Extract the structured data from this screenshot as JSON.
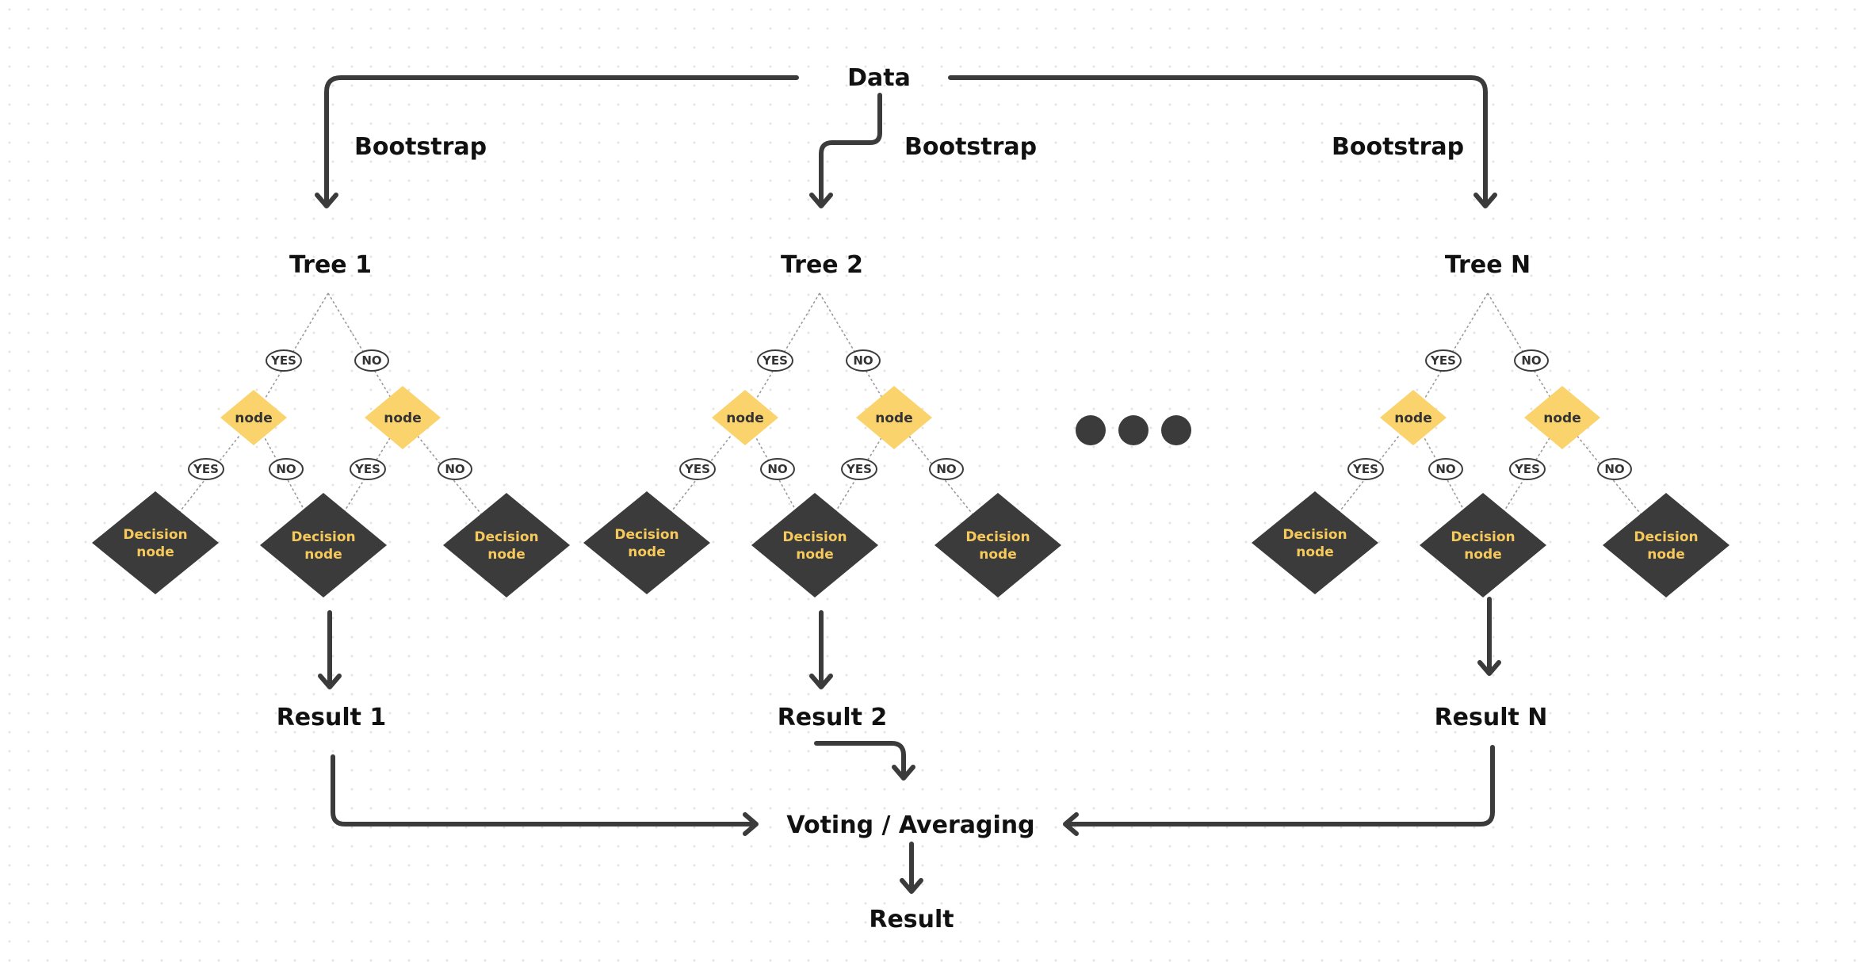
{
  "data_label": "Data",
  "bootstrap_labels": [
    "Bootstrap",
    "Bootstrap",
    "Bootstrap"
  ],
  "trees": [
    {
      "title": "Tree 1",
      "branches": [
        "YES",
        "NO",
        "YES",
        "NO",
        "YES",
        "NO"
      ],
      "nodes": [
        "node",
        "node"
      ],
      "decision_nodes": [
        [
          "Decision",
          "node"
        ],
        [
          "Decision",
          "node"
        ],
        [
          "Decision",
          "node"
        ]
      ],
      "result": "Result 1"
    },
    {
      "title": "Tree 2",
      "branches": [
        "YES",
        "NO",
        "YES",
        "NO",
        "YES",
        "NO"
      ],
      "nodes": [
        "node",
        "node"
      ],
      "decision_nodes": [
        [
          "Decision",
          "node"
        ],
        [
          "Decision",
          "node"
        ],
        [
          "Decision",
          "node"
        ]
      ],
      "result": "Result 2"
    },
    {
      "title": "Tree N",
      "branches": [
        "YES",
        "NO",
        "YES",
        "NO",
        "YES",
        "NO"
      ],
      "nodes": [
        "node",
        "node"
      ],
      "decision_nodes": [
        [
          "Decision",
          "node"
        ],
        [
          "Decision",
          "node"
        ],
        [
          "Decision",
          "node"
        ]
      ],
      "result": "Result N"
    }
  ],
  "aggregate_label": "Voting / Averaging",
  "final_label": "Result",
  "colors": {
    "ink": "#3b3b3b",
    "accent": "#fbd36c",
    "decision_text": "#f6c95a"
  }
}
